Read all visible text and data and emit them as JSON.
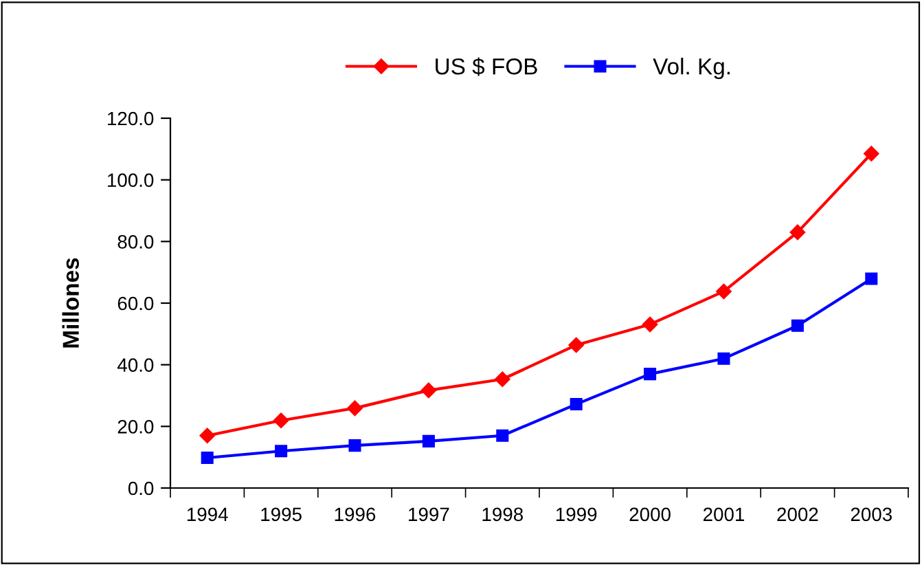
{
  "chart_data": {
    "type": "line",
    "ylabel": "Millones",
    "categories": [
      "1994",
      "1995",
      "1996",
      "1997",
      "1998",
      "1999",
      "2000",
      "2001",
      "2002",
      "2003"
    ],
    "series": [
      {
        "name": "US $ FOB",
        "color": "#ff0000",
        "marker": "diamond",
        "values": [
          17.0,
          21.9,
          25.9,
          31.7,
          35.3,
          46.4,
          53.1,
          63.8,
          83.0,
          108.5
        ]
      },
      {
        "name": "Vol. Kg.",
        "color": "#0000ff",
        "marker": "square",
        "values": [
          9.8,
          12.0,
          13.8,
          15.2,
          17.0,
          27.2,
          37.0,
          42.0,
          52.7,
          67.9
        ]
      }
    ],
    "ylim": [
      0,
      120
    ],
    "yticks": [
      {
        "value": 0,
        "label": "0.0"
      },
      {
        "value": 20,
        "label": "20.0"
      },
      {
        "value": 40,
        "label": "40.0"
      },
      {
        "value": 60,
        "label": "60.0"
      },
      {
        "value": 80,
        "label": "80.0"
      },
      {
        "value": 100,
        "label": "100.0"
      },
      {
        "value": 120,
        "label": "120.0"
      }
    ],
    "grid": false,
    "legend": "top",
    "line_style": "solid"
  }
}
